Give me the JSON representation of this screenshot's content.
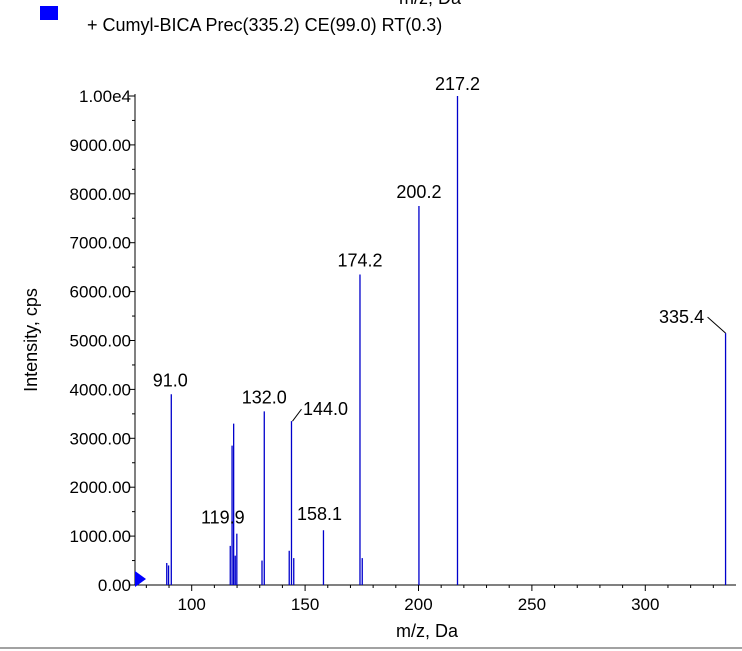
{
  "header": {
    "cut_text": "m/z, Da",
    "legend": "+ Cumyl-BICA Prec(335.2) CE(99.0) RT(0.3)"
  },
  "colors": {
    "series": "#0000cc",
    "legend_swatch": "#0000ff",
    "marker": "#0000ff",
    "axis": "#000000"
  },
  "chart_data": {
    "type": "bar",
    "xlabel": "m/z, Da",
    "ylabel": "Intensity, cps",
    "xlim": [
      75,
      340
    ],
    "ylim": [
      0,
      10000
    ],
    "x_ticks": [
      100,
      150,
      200,
      250,
      300
    ],
    "x_tick_labels": [
      "100",
      "150",
      "200",
      "250",
      "300"
    ],
    "y_ticks": [
      0,
      1000,
      2000,
      3000,
      4000,
      5000,
      6000,
      7000,
      8000,
      9000,
      10000
    ],
    "y_tick_labels": [
      "0.00",
      "1000.00",
      "2000.00",
      "3000.00",
      "4000.00",
      "5000.00",
      "6000.00",
      "7000.00",
      "8000.00",
      "9000.00",
      "1.00e4"
    ],
    "peaks": [
      {
        "x": 89.0,
        "y": 450
      },
      {
        "x": 89.8,
        "y": 400
      },
      {
        "x": 91.0,
        "y": 3900
      },
      {
        "x": 117.0,
        "y": 800
      },
      {
        "x": 117.8,
        "y": 2850
      },
      {
        "x": 118.5,
        "y": 3300
      },
      {
        "x": 119.2,
        "y": 600
      },
      {
        "x": 119.9,
        "y": 1050
      },
      {
        "x": 131.0,
        "y": 500
      },
      {
        "x": 132.0,
        "y": 3550
      },
      {
        "x": 143.0,
        "y": 700
      },
      {
        "x": 144.0,
        "y": 3350
      },
      {
        "x": 145.0,
        "y": 550
      },
      {
        "x": 158.1,
        "y": 1120
      },
      {
        "x": 174.2,
        "y": 6350
      },
      {
        "x": 175.2,
        "y": 550
      },
      {
        "x": 200.2,
        "y": 7750
      },
      {
        "x": 217.2,
        "y": 10000
      },
      {
        "x": 335.4,
        "y": 5150
      }
    ],
    "peak_labels": [
      {
        "text": "91.0",
        "x": 91.0,
        "y": 3900
      },
      {
        "text": "119.9",
        "x": 119.9,
        "y": 1050
      },
      {
        "text": "132.0",
        "x": 132.0,
        "y": 3550
      },
      {
        "text": "144.0",
        "x": 144.0,
        "y": 3350
      },
      {
        "text": "158.1",
        "x": 158.1,
        "y": 1120
      },
      {
        "text": "174.2",
        "x": 174.2,
        "y": 6350
      },
      {
        "text": "200.2",
        "x": 200.2,
        "y": 7750
      },
      {
        "text": "217.2",
        "x": 217.2,
        "y": 10000
      },
      {
        "text": "335.4",
        "x": 335.4,
        "y": 5150
      }
    ],
    "grid": false,
    "legend_position": "top-left"
  }
}
